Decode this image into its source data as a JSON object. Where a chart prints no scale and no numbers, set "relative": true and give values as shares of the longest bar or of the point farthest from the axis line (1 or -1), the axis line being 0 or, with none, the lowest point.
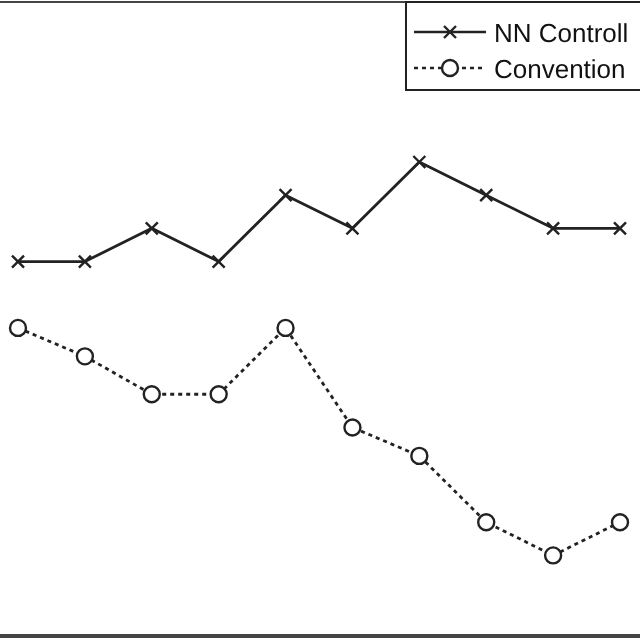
{
  "chart_data": {
    "type": "line",
    "relative": true,
    "categories": [
      null,
      null,
      null,
      null,
      null,
      null,
      null,
      null,
      null,
      null
    ],
    "series": [
      {
        "name": "NN Controll",
        "color": "#222222",
        "marker": "cross",
        "line_style": "solid",
        "values": [
          0.79,
          0.79,
          0.86,
          0.79,
          0.93,
          0.86,
          1,
          0.93,
          0.86,
          0.86
        ]
      },
      {
        "name": "Convention",
        "color": "#222222",
        "marker": "circle",
        "line_style": "dotted",
        "values": [
          0.65,
          0.59,
          0.51,
          0.51,
          0.65,
          0.44,
          0.38,
          0.24,
          0.17,
          0.24
        ]
      }
    ],
    "legend": "top right",
    "grid": false
  }
}
